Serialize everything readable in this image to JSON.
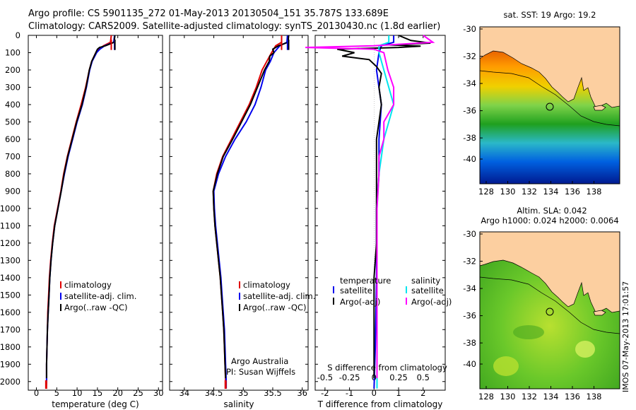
{
  "header": {
    "line1": "Argo profile: CS 5901135_272 01-May-2013 20130504_151 35.787S 133.689E",
    "line2": "Climatology: CARS2009. Satellite-adjusted climatology: synTS_20130430.nc (1.8d earlier)"
  },
  "depth_ticks": [
    0,
    100,
    200,
    300,
    400,
    500,
    600,
    700,
    800,
    900,
    1000,
    1100,
    1200,
    1300,
    1400,
    1500,
    1600,
    1700,
    1800,
    1900,
    2000
  ],
  "colors": {
    "climatology": "#e00000",
    "satellite": "#0000ee",
    "argo": "#000000",
    "salinity_sat": "#00e5ee",
    "salinity_argo": "#ff00ff"
  },
  "chart_data": [
    {
      "type": "line",
      "title": "",
      "xlabel": "temperature (deg C)",
      "ylabel": "depth",
      "xlim": [
        -2,
        31
      ],
      "ylim": [
        2050,
        0
      ],
      "xticks": [
        0,
        5,
        10,
        15,
        20,
        25,
        30
      ],
      "legend": [
        "climatology",
        "satellite-adj. clim.",
        "Argo(..raw -QC)"
      ],
      "series": [
        {
          "name": "climatology",
          "color": "#e00000",
          "depth": [
            0,
            40,
            60,
            80,
            100,
            150,
            200,
            300,
            400,
            500,
            600,
            700,
            800,
            900,
            1000,
            1100,
            1200,
            1300,
            1400,
            1500,
            1600,
            1700,
            1800,
            1900,
            2000,
            2040
          ],
          "values": [
            18.4,
            18.2,
            16.5,
            15.4,
            14.6,
            13.6,
            13.0,
            12.1,
            11.0,
            9.8,
            8.7,
            7.6,
            6.7,
            6.0,
            5.2,
            4.4,
            3.9,
            3.5,
            3.2,
            3.0,
            2.8,
            2.7,
            2.6,
            2.5,
            2.5,
            2.4
          ]
        },
        {
          "name": "satellite-adj. clim.",
          "color": "#0000ee",
          "depth": [
            0,
            40,
            60,
            80,
            100,
            150,
            200,
            300,
            400,
            500,
            600,
            700,
            800,
            900,
            1000,
            1100,
            1200,
            1300,
            1400,
            1500,
            1600,
            1700,
            1800,
            1900,
            2000,
            2040
          ],
          "values": [
            19.2,
            19.0,
            16.8,
            15.6,
            14.8,
            13.7,
            13.1,
            12.3,
            11.3,
            10.0,
            8.9,
            7.8,
            6.9,
            6.1,
            5.3,
            4.5,
            4.0,
            3.6,
            3.3,
            3.1,
            2.9,
            2.7,
            2.6,
            2.5,
            2.5,
            2.4
          ]
        },
        {
          "name": "Argo(..raw -QC)",
          "color": "#000000",
          "depth": [
            0,
            40,
            60,
            70,
            80,
            90,
            100,
            150,
            200,
            300,
            400,
            500,
            600,
            700,
            800,
            900,
            1000,
            1100,
            1200,
            1300,
            1400,
            1500,
            1600,
            1700,
            1800,
            1900,
            1980
          ],
          "values": [
            19.3,
            19.1,
            17.0,
            15.5,
            15.0,
            14.8,
            14.6,
            13.6,
            13.0,
            12.2,
            11.2,
            9.9,
            8.8,
            7.7,
            6.8,
            6.1,
            5.3,
            4.5,
            4.0,
            3.6,
            3.3,
            3.1,
            2.9,
            2.7,
            2.6,
            2.5,
            2.5
          ]
        }
      ]
    },
    {
      "type": "line",
      "title": "",
      "xlabel": "salinity",
      "ylabel": "depth",
      "xlim": [
        33.75,
        36.1
      ],
      "ylim": [
        2050,
        0
      ],
      "xticks": [
        34,
        34.5,
        35,
        35.5,
        36
      ],
      "legend": [
        "climatology",
        "satellite-adj. clim.",
        "Argo(..raw -QC)"
      ],
      "annotation": [
        "Argo Australia",
        "PI: Susan Wijffels"
      ],
      "series": [
        {
          "name": "climatology",
          "color": "#e00000",
          "depth": [
            0,
            40,
            60,
            100,
            150,
            200,
            300,
            400,
            500,
            600,
            700,
            800,
            900,
            1000,
            1100,
            1200,
            1300,
            1400,
            1500,
            1600,
            1700,
            1800,
            1900,
            2000,
            2040
          ],
          "values": [
            35.65,
            35.65,
            35.55,
            35.48,
            35.4,
            35.32,
            35.22,
            35.1,
            34.95,
            34.8,
            34.65,
            34.55,
            34.49,
            34.5,
            34.52,
            34.55,
            34.58,
            34.61,
            34.63,
            34.65,
            34.67,
            34.68,
            34.69,
            34.7,
            34.7
          ]
        },
        {
          "name": "satellite-adj. clim.",
          "color": "#0000ee",
          "depth": [
            0,
            40,
            60,
            100,
            150,
            200,
            300,
            400,
            500,
            600,
            700,
            800,
            900,
            1000,
            1100,
            1200,
            1300,
            1400,
            1500,
            1600,
            1700,
            1800,
            1900,
            2000,
            2040
          ],
          "values": [
            35.75,
            35.74,
            35.62,
            35.52,
            35.46,
            35.38,
            35.3,
            35.2,
            35.05,
            34.86,
            34.7,
            34.58,
            34.5,
            34.51,
            34.53,
            34.56,
            34.59,
            34.62,
            34.64,
            34.66,
            34.68,
            34.69,
            34.7,
            34.71,
            34.71
          ]
        },
        {
          "name": "Argo(..raw -QC)",
          "color": "#000000",
          "depth": [
            0,
            40,
            60,
            80,
            100,
            120,
            150,
            200,
            300,
            400,
            500,
            600,
            700,
            800,
            900,
            1000,
            1100,
            1200,
            1300,
            1400,
            1500,
            1600,
            1700,
            1800,
            1900,
            1980
          ],
          "values": [
            35.77,
            35.76,
            35.6,
            35.5,
            35.52,
            35.45,
            35.44,
            35.36,
            35.24,
            35.12,
            34.97,
            34.82,
            34.66,
            34.56,
            34.49,
            34.5,
            34.52,
            34.55,
            34.58,
            34.61,
            34.63,
            34.65,
            34.67,
            34.68,
            34.69,
            34.7
          ]
        }
      ]
    },
    {
      "type": "line",
      "title": "",
      "xlabel": "T difference from climatology",
      "xlabel2": "S difference from climatology",
      "xlim": [
        -2.4,
        2.9
      ],
      "ylim": [
        2050,
        0
      ],
      "xticks_T": [
        -2,
        -1,
        0,
        1,
        2
      ],
      "xticks_S": [
        -0.5,
        -0.25,
        0,
        0.25,
        0.5
      ],
      "legend_temperature": [
        "temperature",
        "satellite",
        "Argo(-adj)"
      ],
      "legend_salinity": [
        "salinity",
        "satellite",
        "Argo(-adj)"
      ],
      "series": [
        {
          "name": "temperature satellite",
          "color": "#0000ee",
          "depth": [
            0,
            40,
            60,
            100,
            200,
            400,
            600,
            800,
            1000,
            1400,
            1800,
            2040
          ],
          "values": [
            0.8,
            0.8,
            0.3,
            0.2,
            0.1,
            0.3,
            0.2,
            0.2,
            0.1,
            0.1,
            0.05,
            0.0
          ]
        },
        {
          "name": "temperature Argo(-adj)",
          "color": "#000000",
          "depth": [
            0,
            30,
            45,
            55,
            62,
            70,
            80,
            100,
            120,
            140,
            180,
            220,
            300,
            400,
            500,
            600,
            700,
            800,
            900,
            1000,
            1200,
            1400,
            1600,
            1800,
            1980
          ],
          "values": [
            1.0,
            1.5,
            2.3,
            0.6,
            1.9,
            1.0,
            -1.5,
            -0.8,
            -1.3,
            -0.2,
            0.1,
            0.3,
            0.2,
            0.3,
            0.2,
            0.1,
            0.1,
            0.1,
            0.1,
            0.1,
            0.1,
            0.0,
            0.0,
            0.0,
            0.0
          ]
        },
        {
          "name": "salinity satellite",
          "color": "#00e5ee",
          "depth": [
            0,
            40,
            60,
            100,
            200,
            400,
            600,
            800,
            1000,
            1400,
            1800,
            2040
          ],
          "values": [
            0.15,
            0.15,
            0.05,
            0.05,
            0.1,
            0.2,
            0.1,
            0.05,
            0.03,
            0.03,
            0.03,
            0.03
          ]
        },
        {
          "name": "salinity Argo(-adj)",
          "color": "#ff00ff",
          "depth": [
            0,
            40,
            60,
            70,
            80,
            100,
            150,
            200,
            300,
            400,
            500,
            600,
            700,
            800,
            900,
            1000,
            1400,
            1800,
            1980
          ],
          "values": [
            0.5,
            0.6,
            0.0,
            -0.7,
            0.0,
            0.1,
            0.12,
            0.14,
            0.2,
            0.2,
            0.1,
            0.1,
            0.05,
            0.05,
            0.04,
            0.03,
            0.03,
            0.03,
            0.03
          ]
        }
      ]
    }
  ],
  "maps": {
    "sst": {
      "title": "sat. SST: 19 Argo: 19.2",
      "lat_ticks": [
        "-30",
        "-32",
        "-34",
        "-36",
        "-38",
        "-40"
      ],
      "lon_ticks": [
        "128",
        "130",
        "132",
        "134",
        "136",
        "138"
      ]
    },
    "sla": {
      "title1": "Altim. SLA: 0.042",
      "title2": "Argo h1000: 0.024 h2000: 0.0064",
      "lat_ticks": [
        "-30",
        "-32",
        "-34",
        "-36",
        "-38",
        "-40"
      ],
      "lon_ticks": [
        "128",
        "130",
        "132",
        "134",
        "136",
        "138"
      ]
    }
  },
  "footer": {
    "stamp": "IMOS 07-May-2013 17:01:57"
  }
}
